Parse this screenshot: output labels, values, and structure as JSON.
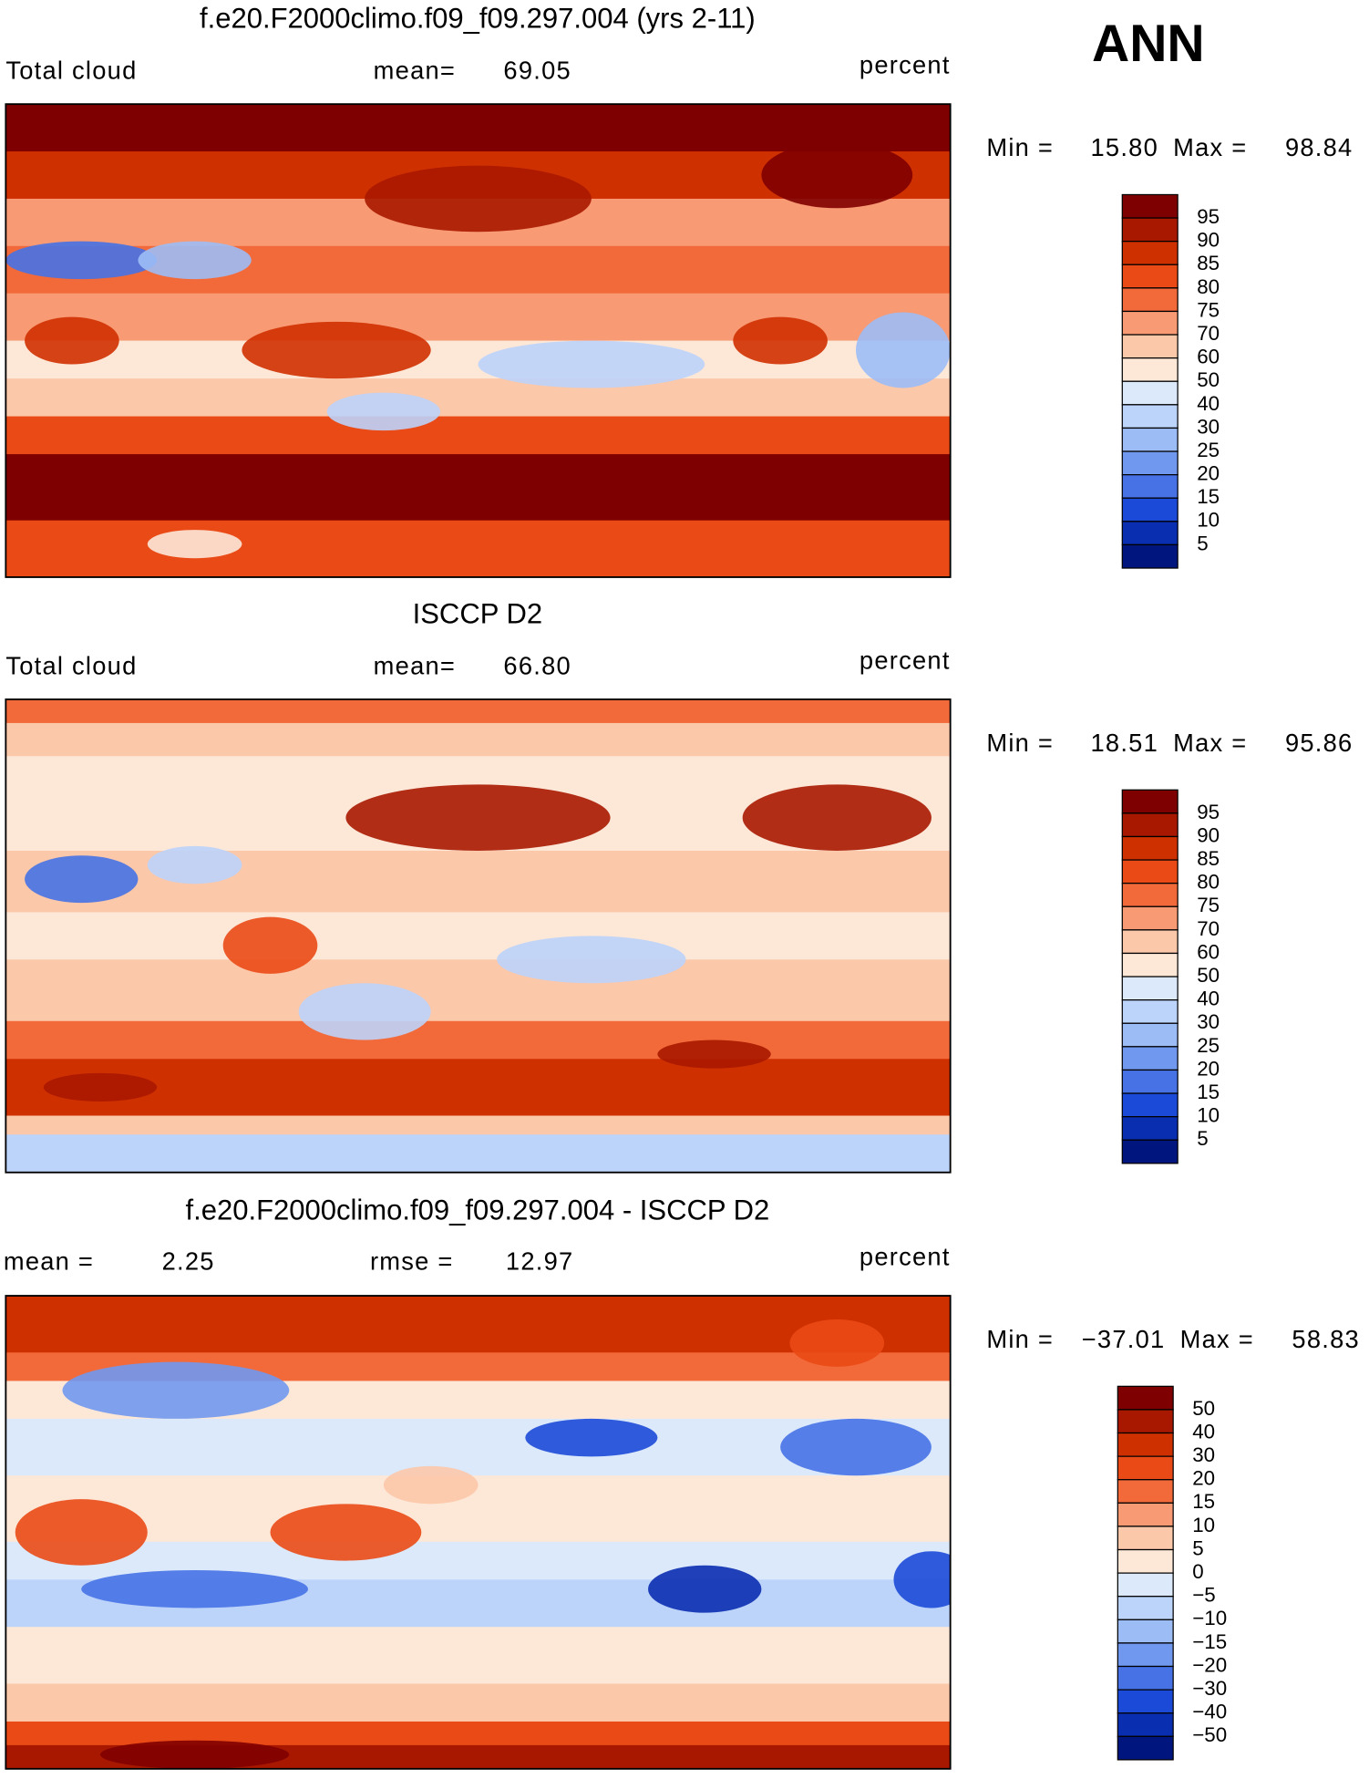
{
  "season": "ANN",
  "colors": [
    "#7f0000",
    "#a81800",
    "#cf3000",
    "#ea4a16",
    "#f36a3a",
    "#f89a74",
    "#fcc8aa",
    "#fde8d8",
    "#dbe9fa",
    "#bcd3fa",
    "#9cbcf6",
    "#7098ef",
    "#4672e6",
    "#1c4ad8",
    "#0a2eb0",
    "#00167e"
  ],
  "panels": [
    {
      "title": "f.e20.F2000climo.f09_f09.297.004 (yrs 2-11)",
      "field": "Total cloud",
      "mean_label": "mean=",
      "mean": "69.05",
      "units": "percent",
      "min_label": "Min =",
      "min": "15.80",
      "max_label": "Max =",
      "max": "98.84",
      "colorbar_labels": [
        "95",
        "90",
        "85",
        "80",
        "75",
        "70",
        "60",
        "50",
        "40",
        "30",
        "25",
        "20",
        "15",
        "10",
        "5"
      ]
    },
    {
      "title": "ISCCP D2",
      "field": "Total cloud",
      "mean_label": "mean=",
      "mean": "66.80",
      "units": "percent",
      "min_label": "Min =",
      "min": "18.51",
      "max_label": "Max =",
      "max": "95.86",
      "colorbar_labels": [
        "95",
        "90",
        "85",
        "80",
        "75",
        "70",
        "60",
        "50",
        "40",
        "30",
        "25",
        "20",
        "15",
        "10",
        "5"
      ]
    },
    {
      "title": "f.e20.F2000climo.f09_f09.297.004 - ISCCP D2",
      "mean_label": "mean =",
      "mean": "2.25",
      "rmse_label": "rmse =",
      "rmse": "12.97",
      "units": "percent",
      "min_label": "Min =",
      "min": "−37.01",
      "max_label": "Max =",
      "max": "58.83",
      "colorbar_labels": [
        "50",
        "40",
        "30",
        "20",
        "15",
        "10",
        "5",
        "0",
        "−5",
        "−10",
        "−15",
        "−20",
        "−30",
        "−40",
        "−50"
      ]
    }
  ]
}
